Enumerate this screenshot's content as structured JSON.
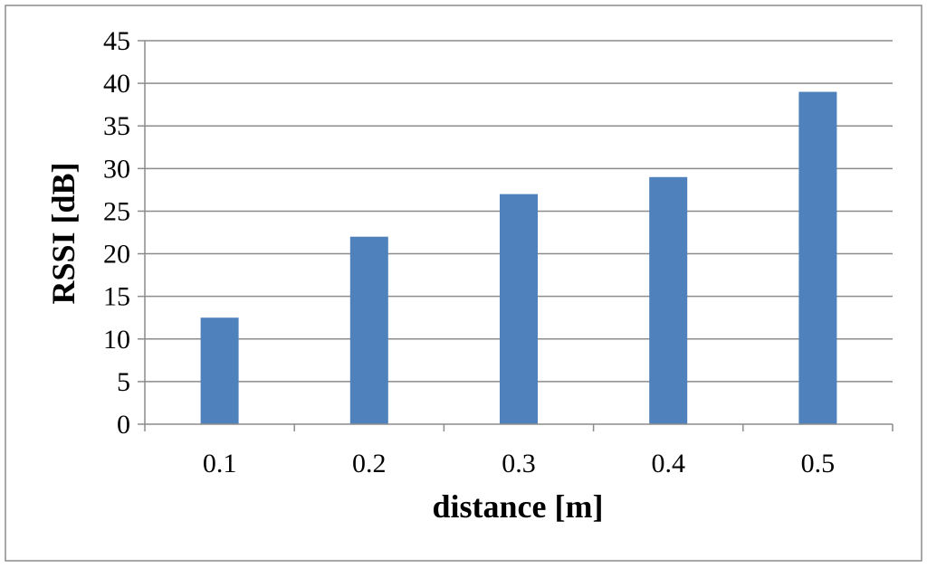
{
  "chart_data": {
    "type": "bar",
    "categories": [
      "0.1",
      "0.2",
      "0.3",
      "0.4",
      "0.5"
    ],
    "values": [
      12.5,
      22,
      27,
      29,
      39
    ],
    "xlabel": "distance [m]",
    "ylabel": "RSSI [dB]",
    "ylim": [
      0,
      45
    ],
    "yticks": [
      0,
      5,
      10,
      15,
      20,
      25,
      30,
      35,
      40,
      45
    ],
    "grid": true,
    "legend": "none",
    "bar_color": "#4f81bd"
  }
}
